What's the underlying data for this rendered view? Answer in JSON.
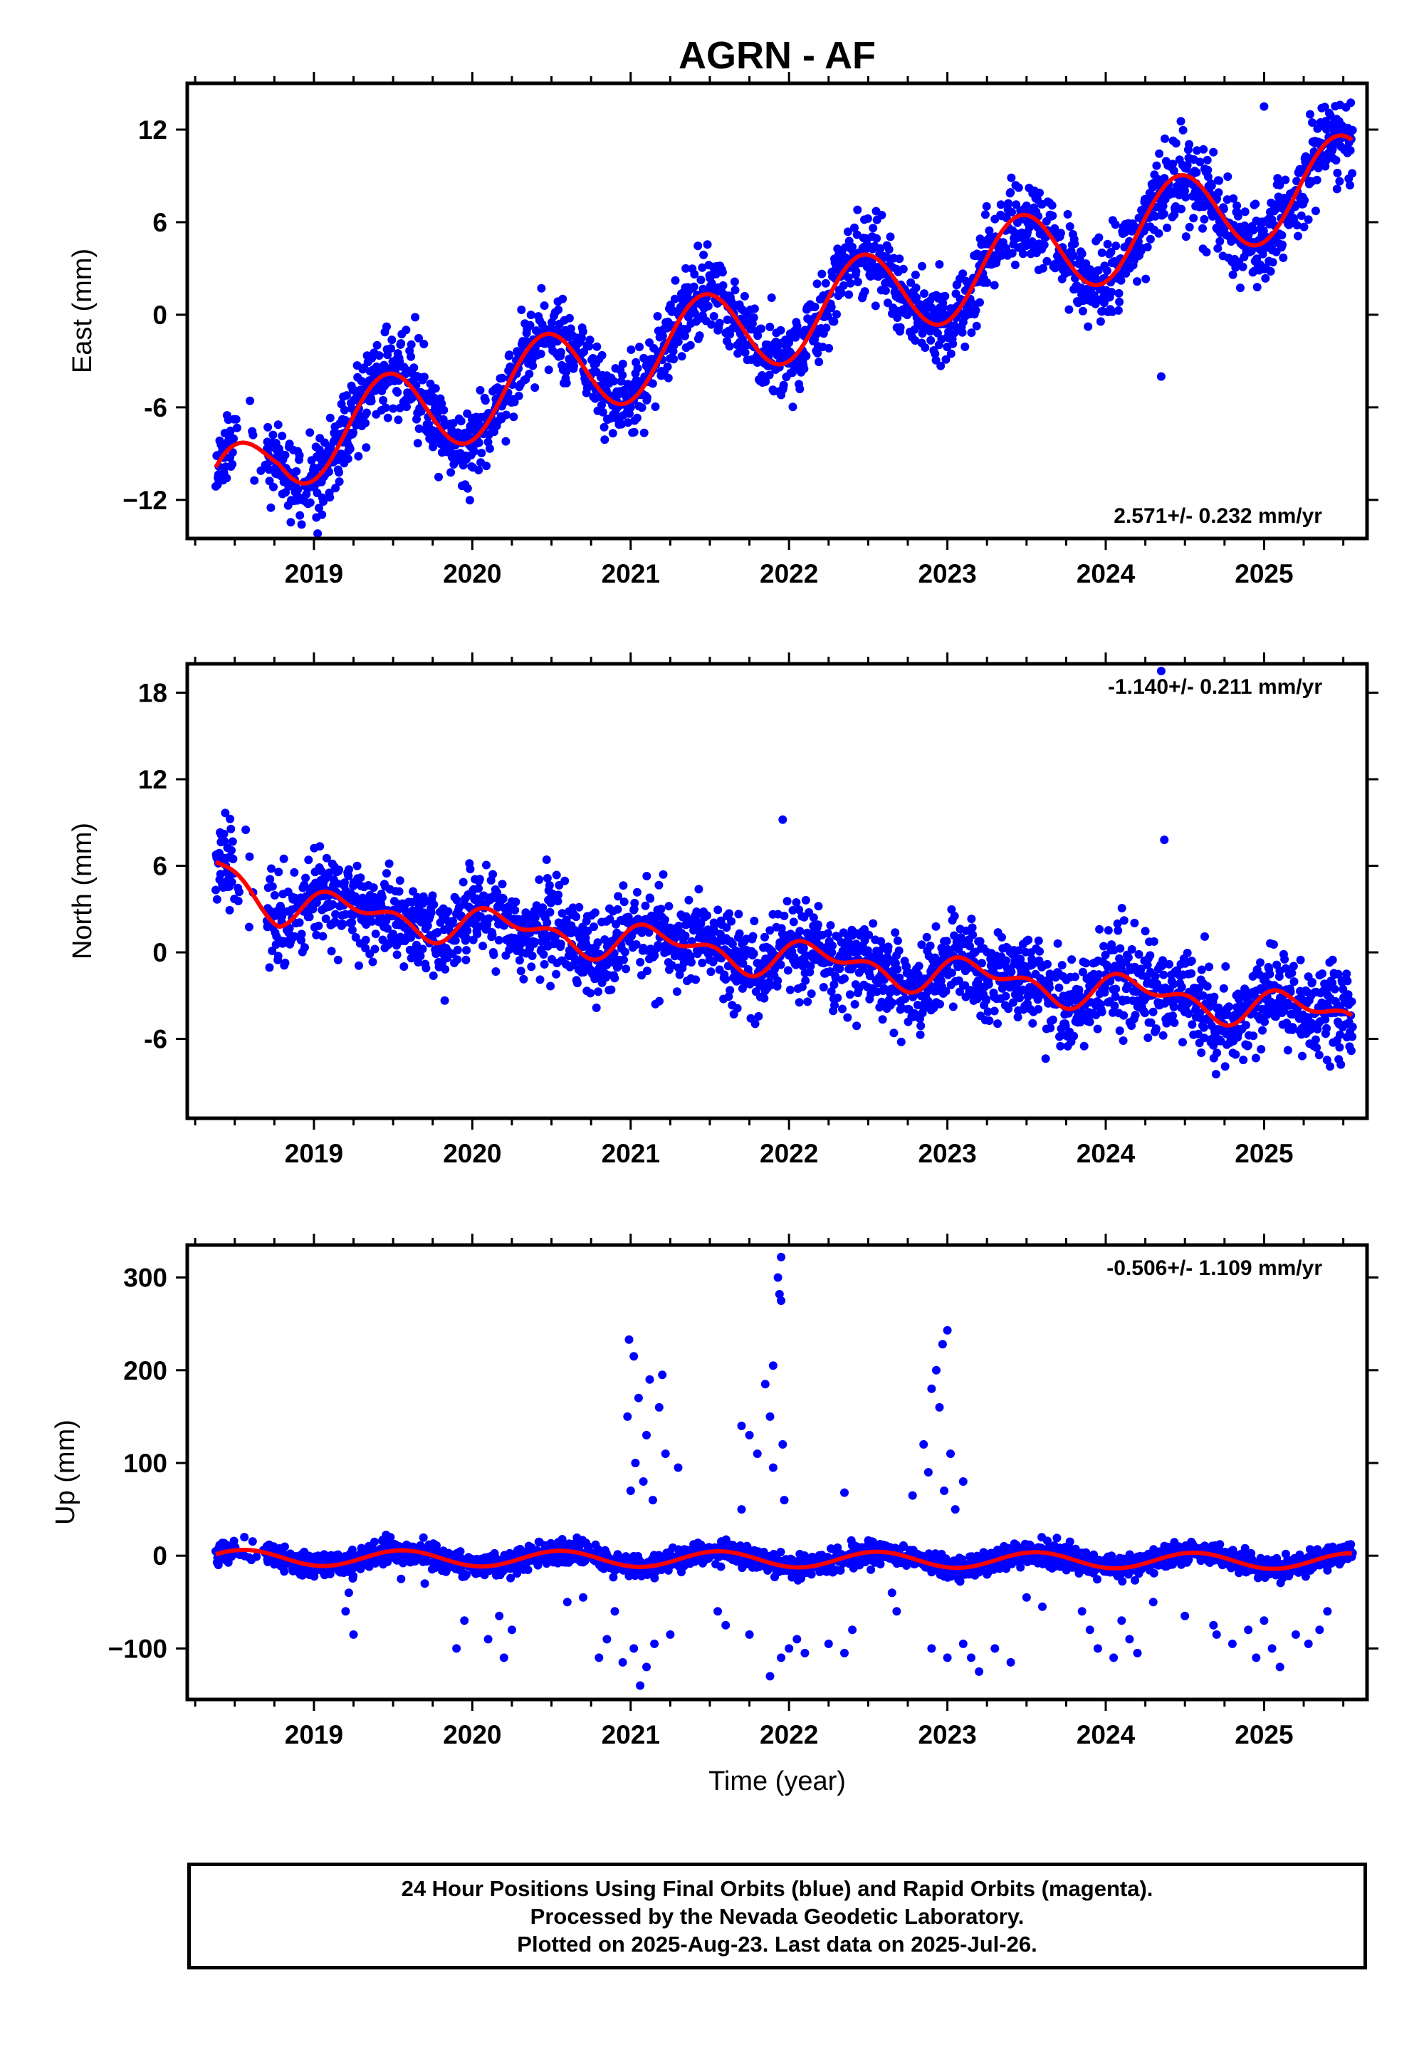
{
  "chart_data": {
    "type": "scatter",
    "title": "AGRN - AF",
    "xlabel": "Time (year)",
    "x_ticks": [
      "2019",
      "2020",
      "2021",
      "2022",
      "2023",
      "2024",
      "2025"
    ],
    "xlim": [
      2018.2,
      2025.65
    ],
    "panels": [
      {
        "name": "east",
        "ylabel": "East (mm)",
        "ylim": [
          -14.5,
          15
        ],
        "yticks": [
          12,
          6,
          0,
          -6,
          -12
        ],
        "ytick_labels": [
          "12",
          "6",
          "0",
          "-6",
          "−12"
        ],
        "rate_label": "2.571+/- 0.232 mm/yr",
        "rate_position": "bottom-right",
        "model": {
          "slope": 2.571,
          "t0": 2022.0,
          "mean": -0.2,
          "ann_cos": -2.8,
          "ann_sin": 0.7,
          "semi_cos": 0.0,
          "semi_sin": 0.0,
          "start_offset": -2.9
        },
        "scatter": {
          "noise": 1.3,
          "seed": 11,
          "outliers": [
            [
              2024.35,
              -4.0
            ],
            [
              2025.0,
              13.5
            ]
          ]
        }
      },
      {
        "name": "north",
        "ylabel": "North (mm)",
        "ylim": [
          -11.5,
          20
        ],
        "yticks": [
          18,
          12,
          6,
          0,
          -6
        ],
        "ytick_labels": [
          "18",
          "12",
          "6",
          "0",
          "-6"
        ],
        "rate_label": "-1.140+/- 0.211 mm/yr",
        "rate_position": "top-right",
        "model": {
          "slope": -1.14,
          "t0": 2022.0,
          "mean": -0.4,
          "ann_cos": 0.3,
          "ann_sin": 0.9,
          "semi_cos": 0.6,
          "semi_sin": 0.3,
          "start_offset": 2.4
        },
        "scatter": {
          "noise": 1.5,
          "seed": 23,
          "outliers": [
            [
              2024.35,
              19.5
            ],
            [
              2024.37,
              7.8
            ],
            [
              2021.96,
              9.2
            ]
          ]
        }
      },
      {
        "name": "up",
        "ylabel": "Up (mm)",
        "ylim": [
          -155,
          335
        ],
        "yticks": [
          300,
          200,
          100,
          0,
          -100
        ],
        "ytick_labels": [
          "300",
          "200",
          "100",
          "0",
          "−100"
        ],
        "rate_label": "-0.506+/- 1.109 mm/yr",
        "rate_position": "top-right",
        "model": {
          "slope": -0.506,
          "t0": 2022.0,
          "mean": -4.0,
          "ann_cos": -8.0,
          "ann_sin": -3.0,
          "semi_cos": 0.0,
          "semi_sin": 0.0,
          "start_offset": 0.0
        },
        "scatter": {
          "noise": 6.0,
          "seed": 37,
          "outliers": [
            [
              2021.95,
              322
            ],
            [
              2021.93,
              300
            ],
            [
              2021.94,
              282
            ],
            [
              2021.95,
              275
            ],
            [
              2023.0,
              243
            ],
            [
              2022.97,
              228
            ],
            [
              2020.99,
              233
            ],
            [
              2021.02,
              215
            ],
            [
              2021.2,
              195
            ],
            [
              2021.12,
              190
            ],
            [
              2021.9,
              205
            ],
            [
              2021.85,
              185
            ],
            [
              2022.93,
              200
            ],
            [
              2022.9,
              180
            ],
            [
              2021.7,
              140
            ],
            [
              2021.75,
              130
            ],
            [
              2021.05,
              170
            ],
            [
              2020.98,
              150
            ],
            [
              2021.1,
              130
            ],
            [
              2021.18,
              160
            ],
            [
              2021.8,
              110
            ],
            [
              2021.88,
              150
            ],
            [
              2022.95,
              160
            ],
            [
              2022.85,
              120
            ],
            [
              2023.02,
              110
            ],
            [
              2022.88,
              90
            ],
            [
              2022.78,
              65
            ],
            [
              2022.35,
              68
            ],
            [
              2021.3,
              95
            ],
            [
              2021.22,
              110
            ],
            [
              2021.03,
              100
            ],
            [
              2021.08,
              80
            ],
            [
              2021.14,
              60
            ],
            [
              2021.7,
              50
            ],
            [
              2021.9,
              95
            ],
            [
              2021.96,
              120
            ],
            [
              2023.1,
              80
            ],
            [
              2023.05,
              50
            ],
            [
              2022.98,
              70
            ],
            [
              2021.0,
              70
            ],
            [
              2021.97,
              60
            ],
            [
              2021.06,
              -140
            ],
            [
              2021.1,
              -120
            ],
            [
              2020.95,
              -115
            ],
            [
              2021.02,
              -100
            ],
            [
              2021.15,
              -95
            ],
            [
              2021.25,
              -85
            ],
            [
              2020.8,
              -110
            ],
            [
              2020.85,
              -90
            ],
            [
              2021.88,
              -130
            ],
            [
              2021.95,
              -110
            ],
            [
              2022.0,
              -100
            ],
            [
              2022.05,
              -90
            ],
            [
              2022.1,
              -105
            ],
            [
              2021.75,
              -85
            ],
            [
              2022.9,
              -100
            ],
            [
              2023.0,
              -110
            ],
            [
              2023.1,
              -95
            ],
            [
              2023.2,
              -125
            ],
            [
              2023.15,
              -110
            ],
            [
              2023.4,
              -115
            ],
            [
              2023.3,
              -100
            ],
            [
              2023.9,
              -80
            ],
            [
              2023.95,
              -100
            ],
            [
              2024.05,
              -110
            ],
            [
              2024.15,
              -90
            ],
            [
              2024.2,
              -105
            ],
            [
              2024.1,
              -70
            ],
            [
              2023.85,
              -60
            ],
            [
              2024.8,
              -95
            ],
            [
              2024.9,
              -80
            ],
            [
              2024.95,
              -110
            ],
            [
              2025.05,
              -100
            ],
            [
              2025.1,
              -120
            ],
            [
              2025.2,
              -85
            ],
            [
              2025.28,
              -95
            ],
            [
              2025.0,
              -70
            ],
            [
              2020.1,
              -90
            ],
            [
              2020.2,
              -110
            ],
            [
              2020.25,
              -80
            ],
            [
              2019.9,
              -100
            ],
            [
              2019.95,
              -70
            ],
            [
              2019.25,
              -85
            ],
            [
              2019.2,
              -60
            ],
            [
              2019.22,
              -40
            ],
            [
              2020.17,
              -65
            ],
            [
              2024.68,
              -75
            ],
            [
              2024.7,
              -85
            ],
            [
              2022.25,
              -95
            ],
            [
              2022.35,
              -105
            ],
            [
              2022.4,
              -80
            ],
            [
              2021.55,
              -60
            ],
            [
              2021.6,
              -75
            ],
            [
              2020.9,
              -60
            ],
            [
              2022.65,
              -40
            ],
            [
              2022.68,
              -60
            ],
            [
              2023.5,
              -45
            ],
            [
              2023.6,
              -55
            ],
            [
              2024.3,
              -50
            ],
            [
              2024.5,
              -65
            ],
            [
              2025.4,
              -60
            ],
            [
              2025.35,
              -80
            ],
            [
              2020.6,
              -50
            ],
            [
              2020.7,
              -45
            ],
            [
              2019.7,
              -30
            ],
            [
              2019.55,
              -25
            ]
          ]
        }
      }
    ],
    "series": [
      {
        "name": "Final Orbits",
        "color": "#0000ff"
      },
      {
        "name": "model",
        "color": "#ff0000"
      }
    ]
  },
  "footer": {
    "line1": "24 Hour Positions Using Final Orbits (blue) and Rapid Orbits (magenta).",
    "line2": "Processed by the Nevada Geodetic Laboratory.",
    "line3": "Plotted on 2025-Aug-23. Last data on 2025-Jul-26."
  }
}
